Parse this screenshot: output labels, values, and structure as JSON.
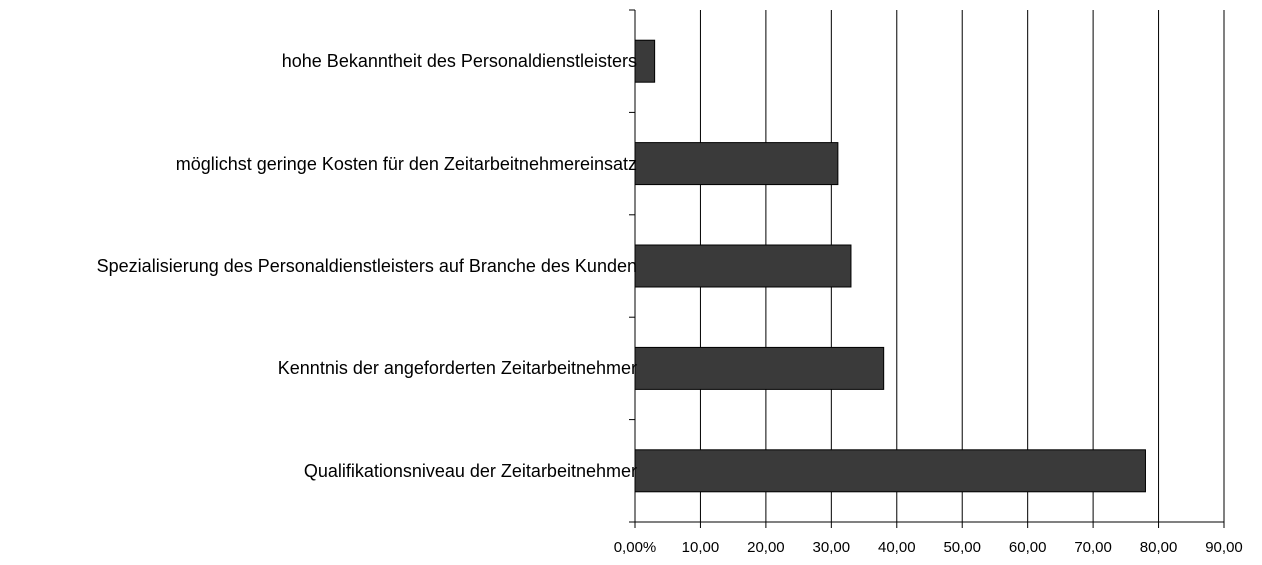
{
  "chart_data": {
    "type": "bar",
    "orientation": "horizontal",
    "categories": [
      "hohe Bekanntheit des Personaldienstleisters",
      "möglichst geringe Kosten für den Zeitarbeitnehmereinsatz",
      "Spezialisierung des Personaldienstleisters auf Branche des Kunden",
      "Kenntnis der angeforderten Zeitarbeitnehmer",
      "Qualifikationsniveau der Zeitarbeitnehmer"
    ],
    "values": [
      3,
      31,
      33,
      38,
      78
    ],
    "color": "#3a3a3a",
    "xlim": [
      0,
      90
    ],
    "xticks": [
      {
        "value": 0,
        "label": "0,00%"
      },
      {
        "value": 10,
        "label": "10,00"
      },
      {
        "value": 20,
        "label": "20,00"
      },
      {
        "value": 30,
        "label": "30,00"
      },
      {
        "value": 40,
        "label": "40,00"
      },
      {
        "value": 50,
        "label": "50,00"
      },
      {
        "value": 60,
        "label": "60,00"
      },
      {
        "value": 70,
        "label": "70,00"
      },
      {
        "value": 80,
        "label": "80,00"
      },
      {
        "value": 90,
        "label": "90,00"
      }
    ],
    "grid": true
  }
}
